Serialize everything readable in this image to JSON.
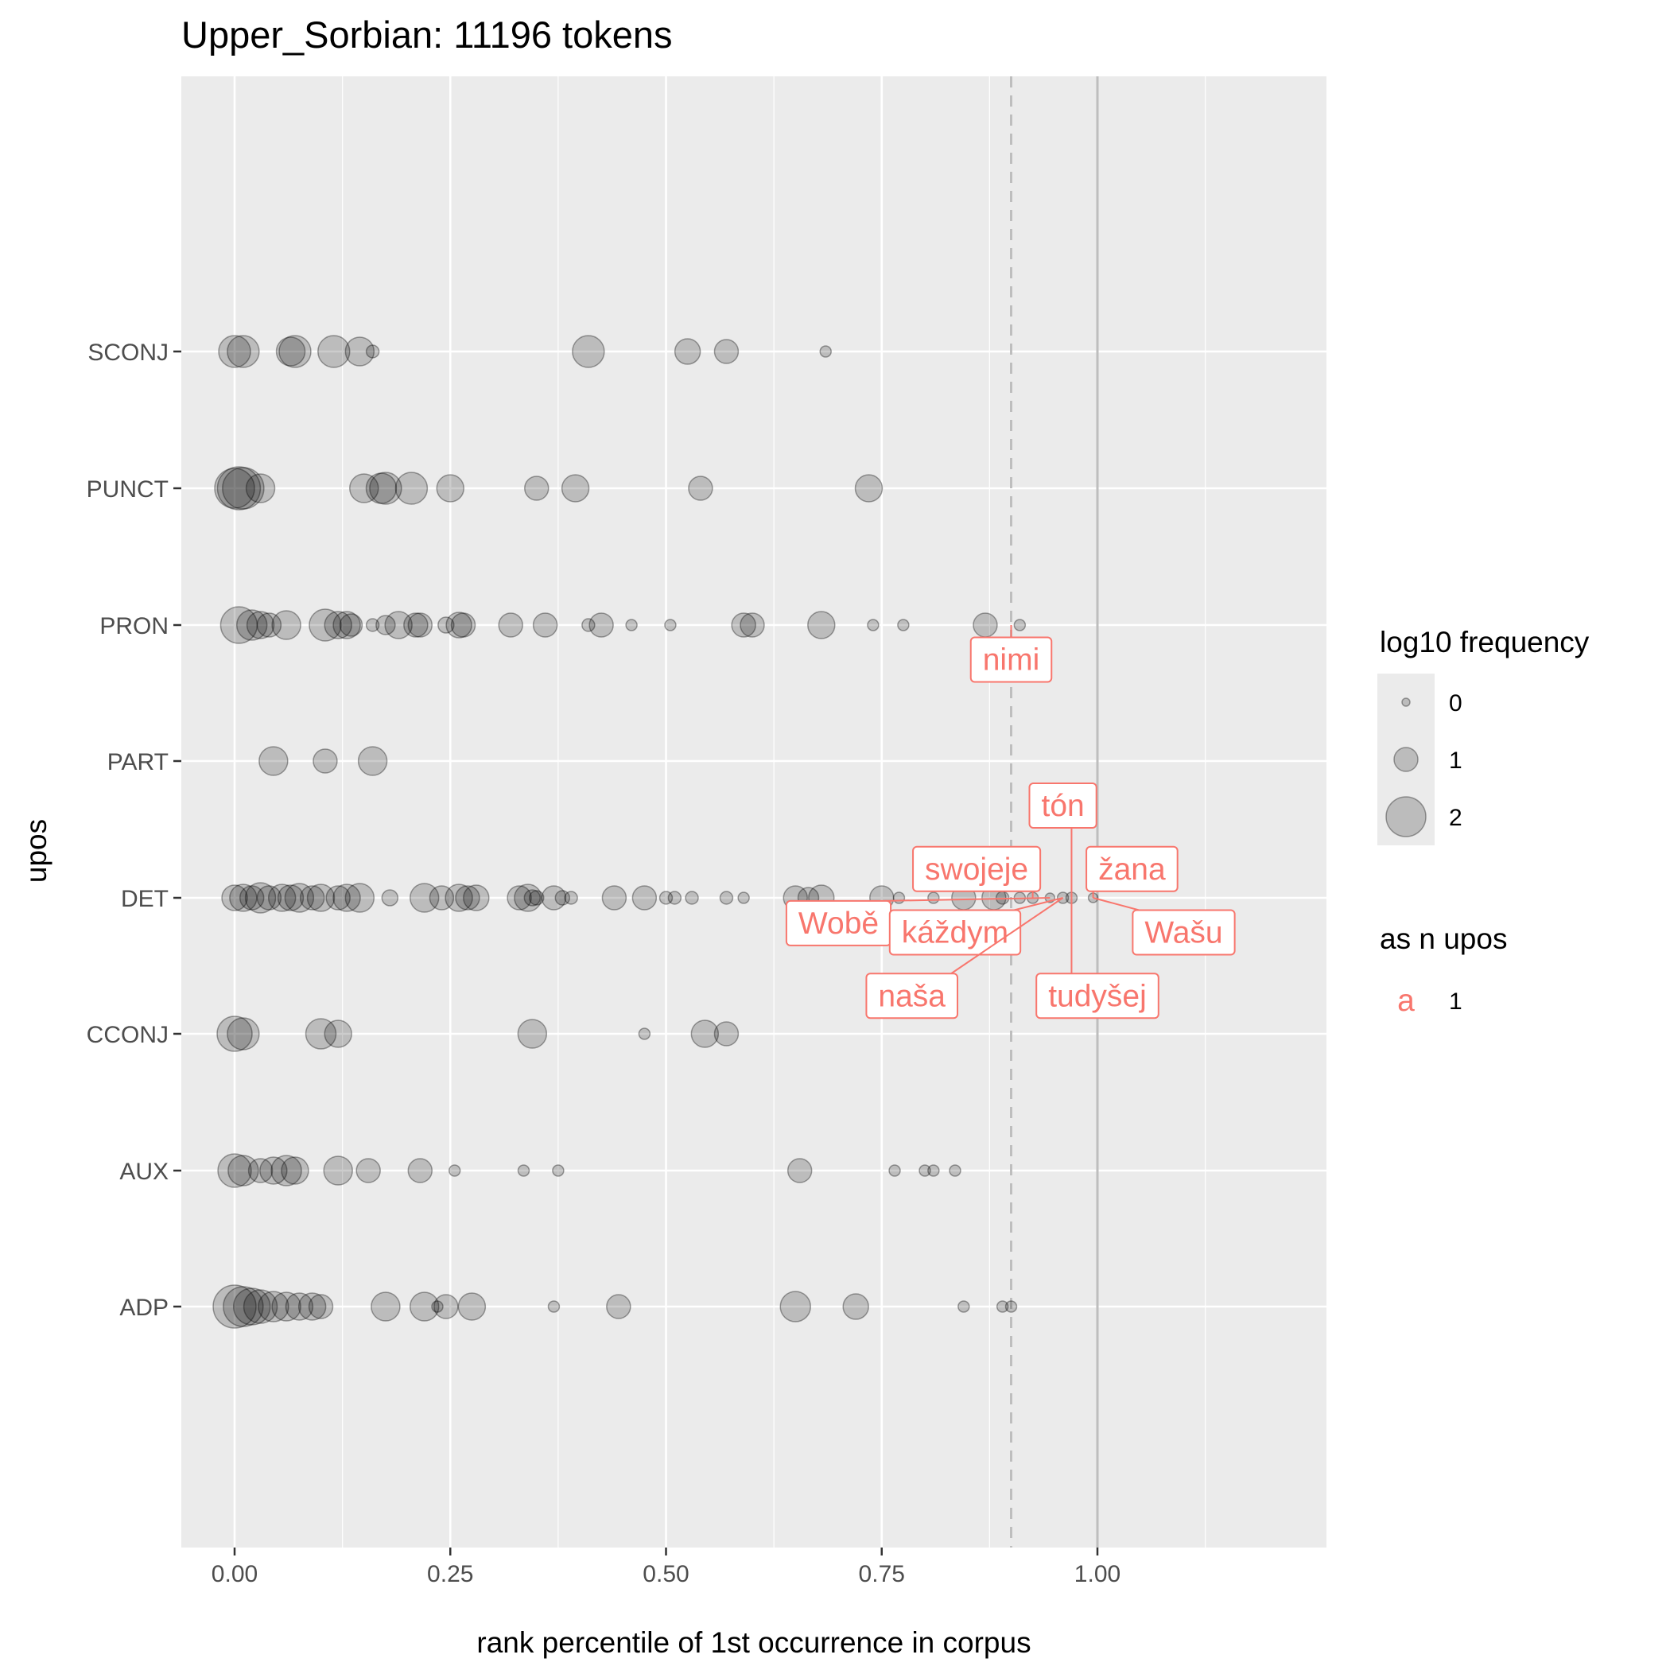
{
  "chart_data": {
    "type": "scatter",
    "title": "Upper_Sorbian: 11196 tokens",
    "xlabel": "rank percentile of 1st occurrence in corpus",
    "ylabel": "upos",
    "xlim": [
      -0.12,
      1.26
    ],
    "x_ticks": [
      {
        "value": 0.0,
        "label": "0.00"
      },
      {
        "value": 0.25,
        "label": "0.25"
      },
      {
        "value": 0.5,
        "label": "0.50"
      },
      {
        "value": 0.75,
        "label": "0.75"
      },
      {
        "value": 1.0,
        "label": "1.00"
      }
    ],
    "categories": [
      "ADP",
      "AUX",
      "CCONJ",
      "DET",
      "PART",
      "PRON",
      "PUNCT",
      "SCONJ"
    ],
    "reference_lines": [
      {
        "x": 0.9,
        "style": "dashed"
      },
      {
        "x": 1.0,
        "style": "solid"
      }
    ],
    "grid": true,
    "point_color": "#000000",
    "point_opacity": 0.2,
    "annotation_color": "#F8766D",
    "series": [
      {
        "category": "SCONJ",
        "points": [
          [
            0.0,
            1.5
          ],
          [
            0.01,
            1.5
          ],
          [
            0.065,
            1.3
          ],
          [
            0.07,
            1.5
          ],
          [
            0.115,
            1.5
          ],
          [
            0.145,
            1.3
          ],
          [
            0.16,
            0.3
          ],
          [
            0.41,
            1.5
          ],
          [
            0.525,
            1.1
          ],
          [
            0.57,
            1.0
          ],
          [
            0.685,
            0.2
          ]
        ]
      },
      {
        "category": "PUNCT",
        "points": [
          [
            0.0,
            2.0
          ],
          [
            0.005,
            2.2
          ],
          [
            0.01,
            2.1
          ],
          [
            0.03,
            1.3
          ],
          [
            0.15,
            1.3
          ],
          [
            0.17,
            1.4
          ],
          [
            0.175,
            1.5
          ],
          [
            0.205,
            1.5
          ],
          [
            0.25,
            1.2
          ],
          [
            0.35,
            1.0
          ],
          [
            0.395,
            1.2
          ],
          [
            0.54,
            1.0
          ],
          [
            0.735,
            1.2
          ]
        ]
      },
      {
        "category": "PRON",
        "points": [
          [
            0.005,
            1.8
          ],
          [
            0.02,
            1.4
          ],
          [
            0.03,
            1.2
          ],
          [
            0.04,
            1.0
          ],
          [
            0.06,
            1.3
          ],
          [
            0.105,
            1.5
          ],
          [
            0.12,
            1.2
          ],
          [
            0.13,
            1.2
          ],
          [
            0.135,
            0.9
          ],
          [
            0.16,
            0.3
          ],
          [
            0.175,
            0.7
          ],
          [
            0.19,
            1.2
          ],
          [
            0.21,
            1.0
          ],
          [
            0.215,
            1.0
          ],
          [
            0.245,
            0.5
          ],
          [
            0.26,
            1.1
          ],
          [
            0.265,
            1.0
          ],
          [
            0.32,
            1.0
          ],
          [
            0.36,
            1.0
          ],
          [
            0.41,
            0.3
          ],
          [
            0.425,
            1.0
          ],
          [
            0.46,
            0.2
          ],
          [
            0.505,
            0.2
          ],
          [
            0.59,
            1.0
          ],
          [
            0.6,
            1.0
          ],
          [
            0.68,
            1.2
          ],
          [
            0.74,
            0.2
          ],
          [
            0.775,
            0.2
          ],
          [
            0.87,
            1.0
          ],
          [
            0.91,
            0.2
          ]
        ]
      },
      {
        "category": "PART",
        "points": [
          [
            0.045,
            1.3
          ],
          [
            0.105,
            1.0
          ],
          [
            0.16,
            1.3
          ]
        ]
      },
      {
        "category": "DET",
        "points": [
          [
            0.0,
            1.1
          ],
          [
            0.01,
            1.2
          ],
          [
            0.02,
            1.0
          ],
          [
            0.03,
            1.4
          ],
          [
            0.04,
            1.0
          ],
          [
            0.055,
            1.2
          ],
          [
            0.065,
            1.1
          ],
          [
            0.075,
            1.3
          ],
          [
            0.09,
            1.0
          ],
          [
            0.1,
            1.2
          ],
          [
            0.12,
            1.0
          ],
          [
            0.13,
            1.2
          ],
          [
            0.145,
            1.3
          ],
          [
            0.18,
            0.5
          ],
          [
            0.22,
            1.3
          ],
          [
            0.24,
            1.0
          ],
          [
            0.26,
            1.2
          ],
          [
            0.27,
            1.0
          ],
          [
            0.28,
            1.1
          ],
          [
            0.33,
            1.0
          ],
          [
            0.34,
            1.2
          ],
          [
            0.345,
            0.5
          ],
          [
            0.35,
            0.4
          ],
          [
            0.37,
            1.0
          ],
          [
            0.38,
            0.4
          ],
          [
            0.39,
            0.3
          ],
          [
            0.44,
            1.0
          ],
          [
            0.475,
            1.0
          ],
          [
            0.5,
            0.3
          ],
          [
            0.51,
            0.3
          ],
          [
            0.53,
            0.3
          ],
          [
            0.57,
            0.3
          ],
          [
            0.59,
            0.2
          ],
          [
            0.65,
            1.0
          ],
          [
            0.665,
            0.8
          ],
          [
            0.68,
            1.1
          ],
          [
            0.75,
            1.0
          ],
          [
            0.77,
            0.2
          ],
          [
            0.81,
            0.2
          ],
          [
            0.845,
            1.0
          ],
          [
            0.88,
            1.0
          ],
          [
            0.89,
            0.3
          ],
          [
            0.91,
            0.2
          ],
          [
            0.925,
            0.2
          ],
          [
            0.945,
            0.1
          ],
          [
            0.96,
            0.2
          ],
          [
            0.97,
            0.2
          ],
          [
            0.995,
            0.1
          ]
        ]
      },
      {
        "category": "CCONJ",
        "points": [
          [
            0.0,
            1.7
          ],
          [
            0.01,
            1.5
          ],
          [
            0.1,
            1.4
          ],
          [
            0.12,
            1.2
          ],
          [
            0.345,
            1.3
          ],
          [
            0.475,
            0.2
          ],
          [
            0.545,
            1.2
          ],
          [
            0.57,
            1.0
          ]
        ]
      },
      {
        "category": "AUX",
        "points": [
          [
            0.0,
            1.6
          ],
          [
            0.01,
            1.4
          ],
          [
            0.03,
            1.0
          ],
          [
            0.045,
            1.2
          ],
          [
            0.06,
            1.4
          ],
          [
            0.07,
            1.2
          ],
          [
            0.12,
            1.3
          ],
          [
            0.155,
            1.0
          ],
          [
            0.215,
            1.0
          ],
          [
            0.255,
            0.2
          ],
          [
            0.335,
            0.2
          ],
          [
            0.375,
            0.2
          ],
          [
            0.655,
            1.0
          ],
          [
            0.765,
            0.2
          ],
          [
            0.8,
            0.2
          ],
          [
            0.81,
            0.2
          ],
          [
            0.835,
            0.2
          ]
        ]
      },
      {
        "category": "ADP",
        "points": [
          [
            0.0,
            2.2
          ],
          [
            0.01,
            2.0
          ],
          [
            0.02,
            1.8
          ],
          [
            0.03,
            1.6
          ],
          [
            0.045,
            1.4
          ],
          [
            0.06,
            1.3
          ],
          [
            0.075,
            1.2
          ],
          [
            0.09,
            1.2
          ],
          [
            0.1,
            1.0
          ],
          [
            0.175,
            1.3
          ],
          [
            0.22,
            1.3
          ],
          [
            0.235,
            0.2
          ],
          [
            0.245,
            1.0
          ],
          [
            0.275,
            1.2
          ],
          [
            0.37,
            0.2
          ],
          [
            0.445,
            1.0
          ],
          [
            0.65,
            1.4
          ],
          [
            0.72,
            1.1
          ],
          [
            0.845,
            0.2
          ],
          [
            0.89,
            0.2
          ],
          [
            0.9,
            0.2
          ]
        ]
      }
    ],
    "annotations": [
      {
        "text": "nimi",
        "category": "PRON",
        "x": 0.9,
        "tail_x": 0.9,
        "tail_dy": -0.3
      },
      {
        "text": "tón",
        "category": "DET",
        "x": 0.97,
        "tail_x": 0.96,
        "tail_dy": 0.8
      },
      {
        "text": "swojeje",
        "category": "DET",
        "x": 0.925,
        "tail_x": 0.86,
        "tail_dy": 0.25
      },
      {
        "text": "žana",
        "category": "DET",
        "x": 0.995,
        "tail_x": 1.04,
        "tail_dy": 0.25
      },
      {
        "text": "Wobě",
        "category": "DET",
        "x": 0.945,
        "tail_x": 0.7,
        "tail_dy": -0.22
      },
      {
        "text": "káždym",
        "category": "DET",
        "x": 0.96,
        "tail_x": 0.835,
        "tail_dy": -0.3
      },
      {
        "text": "Wašu",
        "category": "DET",
        "x": 0.995,
        "tail_x": 1.1,
        "tail_dy": -0.3
      },
      {
        "text": "naša",
        "category": "DET",
        "x": 0.96,
        "tail_x": 0.785,
        "tail_dy": -0.85
      },
      {
        "text": "tudyšej",
        "category": "DET",
        "x": 0.97,
        "tail_x": 1.0,
        "tail_dy": -0.85
      }
    ],
    "legend": {
      "placement": "right",
      "size_title": "log10 frequency",
      "size_entries": [
        {
          "value": 0,
          "label": "0"
        },
        {
          "value": 1,
          "label": "1"
        },
        {
          "value": 2,
          "label": "2"
        }
      ],
      "color_title": "as n upos",
      "color_entries": [
        {
          "key": "a",
          "label": "1"
        }
      ]
    }
  }
}
